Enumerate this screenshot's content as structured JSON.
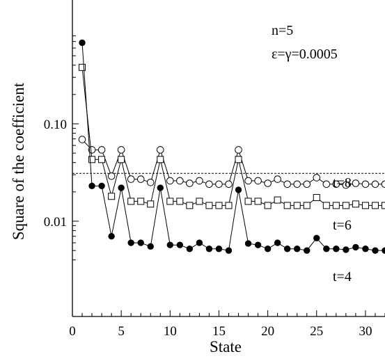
{
  "chart_data": {
    "type": "scatter",
    "title": "",
    "xlabel": "State",
    "ylabel": "Square of the coefficient",
    "xlim": [
      0,
      32
    ],
    "ylim": [
      0.004,
      0.8
    ],
    "yscale": "log",
    "x_ticks": [
      0,
      5,
      10,
      15,
      20,
      25,
      30
    ],
    "y_ticks": [
      {
        "value": 0.01,
        "label": "0.01"
      },
      {
        "value": 0.1,
        "label": "0.10"
      }
    ],
    "annotations": [
      "n=5",
      "ε=γ=0.0005"
    ],
    "reference_line": {
      "y": 0.031,
      "style": "dashed"
    },
    "grid": false,
    "series": [
      {
        "name": "t=8",
        "marker": "open-circle",
        "x": [
          1,
          2,
          3,
          4,
          5,
          6,
          7,
          8,
          9,
          10,
          11,
          12,
          13,
          14,
          15,
          16,
          17,
          18,
          19,
          20,
          21,
          22,
          23,
          24,
          25,
          26,
          27,
          28,
          29,
          30,
          31,
          32
        ],
        "y": [
          0.069,
          0.054,
          0.054,
          0.029,
          0.054,
          0.027,
          0.027,
          0.025,
          0.054,
          0.026,
          0.026,
          0.0245,
          0.026,
          0.024,
          0.024,
          0.024,
          0.054,
          0.026,
          0.026,
          0.0245,
          0.027,
          0.024,
          0.024,
          0.024,
          0.028,
          0.024,
          0.024,
          0.0235,
          0.0245,
          0.024,
          0.024,
          0.024
        ]
      },
      {
        "name": "t=6",
        "marker": "open-square",
        "x": [
          1,
          2,
          3,
          4,
          5,
          6,
          7,
          8,
          9,
          10,
          11,
          12,
          13,
          14,
          15,
          16,
          17,
          18,
          19,
          20,
          21,
          22,
          23,
          24,
          25,
          26,
          27,
          28,
          29,
          30,
          31,
          32
        ],
        "y": [
          0.38,
          0.043,
          0.043,
          0.018,
          0.043,
          0.016,
          0.016,
          0.015,
          0.043,
          0.016,
          0.016,
          0.0145,
          0.016,
          0.0145,
          0.0145,
          0.0145,
          0.043,
          0.016,
          0.016,
          0.0145,
          0.0165,
          0.0145,
          0.0145,
          0.0145,
          0.0175,
          0.0145,
          0.0145,
          0.0145,
          0.015,
          0.0145,
          0.0145,
          0.0145
        ]
      },
      {
        "name": "t=4",
        "marker": "filled-circle",
        "x": [
          1,
          2,
          3,
          4,
          5,
          6,
          7,
          8,
          9,
          10,
          11,
          12,
          13,
          14,
          15,
          16,
          17,
          18,
          19,
          20,
          21,
          22,
          23,
          24,
          25,
          26,
          27,
          28,
          29,
          30,
          31,
          32
        ],
        "y": [
          0.68,
          0.023,
          0.023,
          0.007,
          0.022,
          0.006,
          0.006,
          0.0055,
          0.022,
          0.0057,
          0.0057,
          0.0052,
          0.006,
          0.0052,
          0.0052,
          0.005,
          0.021,
          0.0059,
          0.0057,
          0.0052,
          0.006,
          0.0052,
          0.0052,
          0.005,
          0.0067,
          0.0052,
          0.0052,
          0.0051,
          0.0054,
          0.0052,
          0.005,
          0.005
        ]
      }
    ]
  }
}
